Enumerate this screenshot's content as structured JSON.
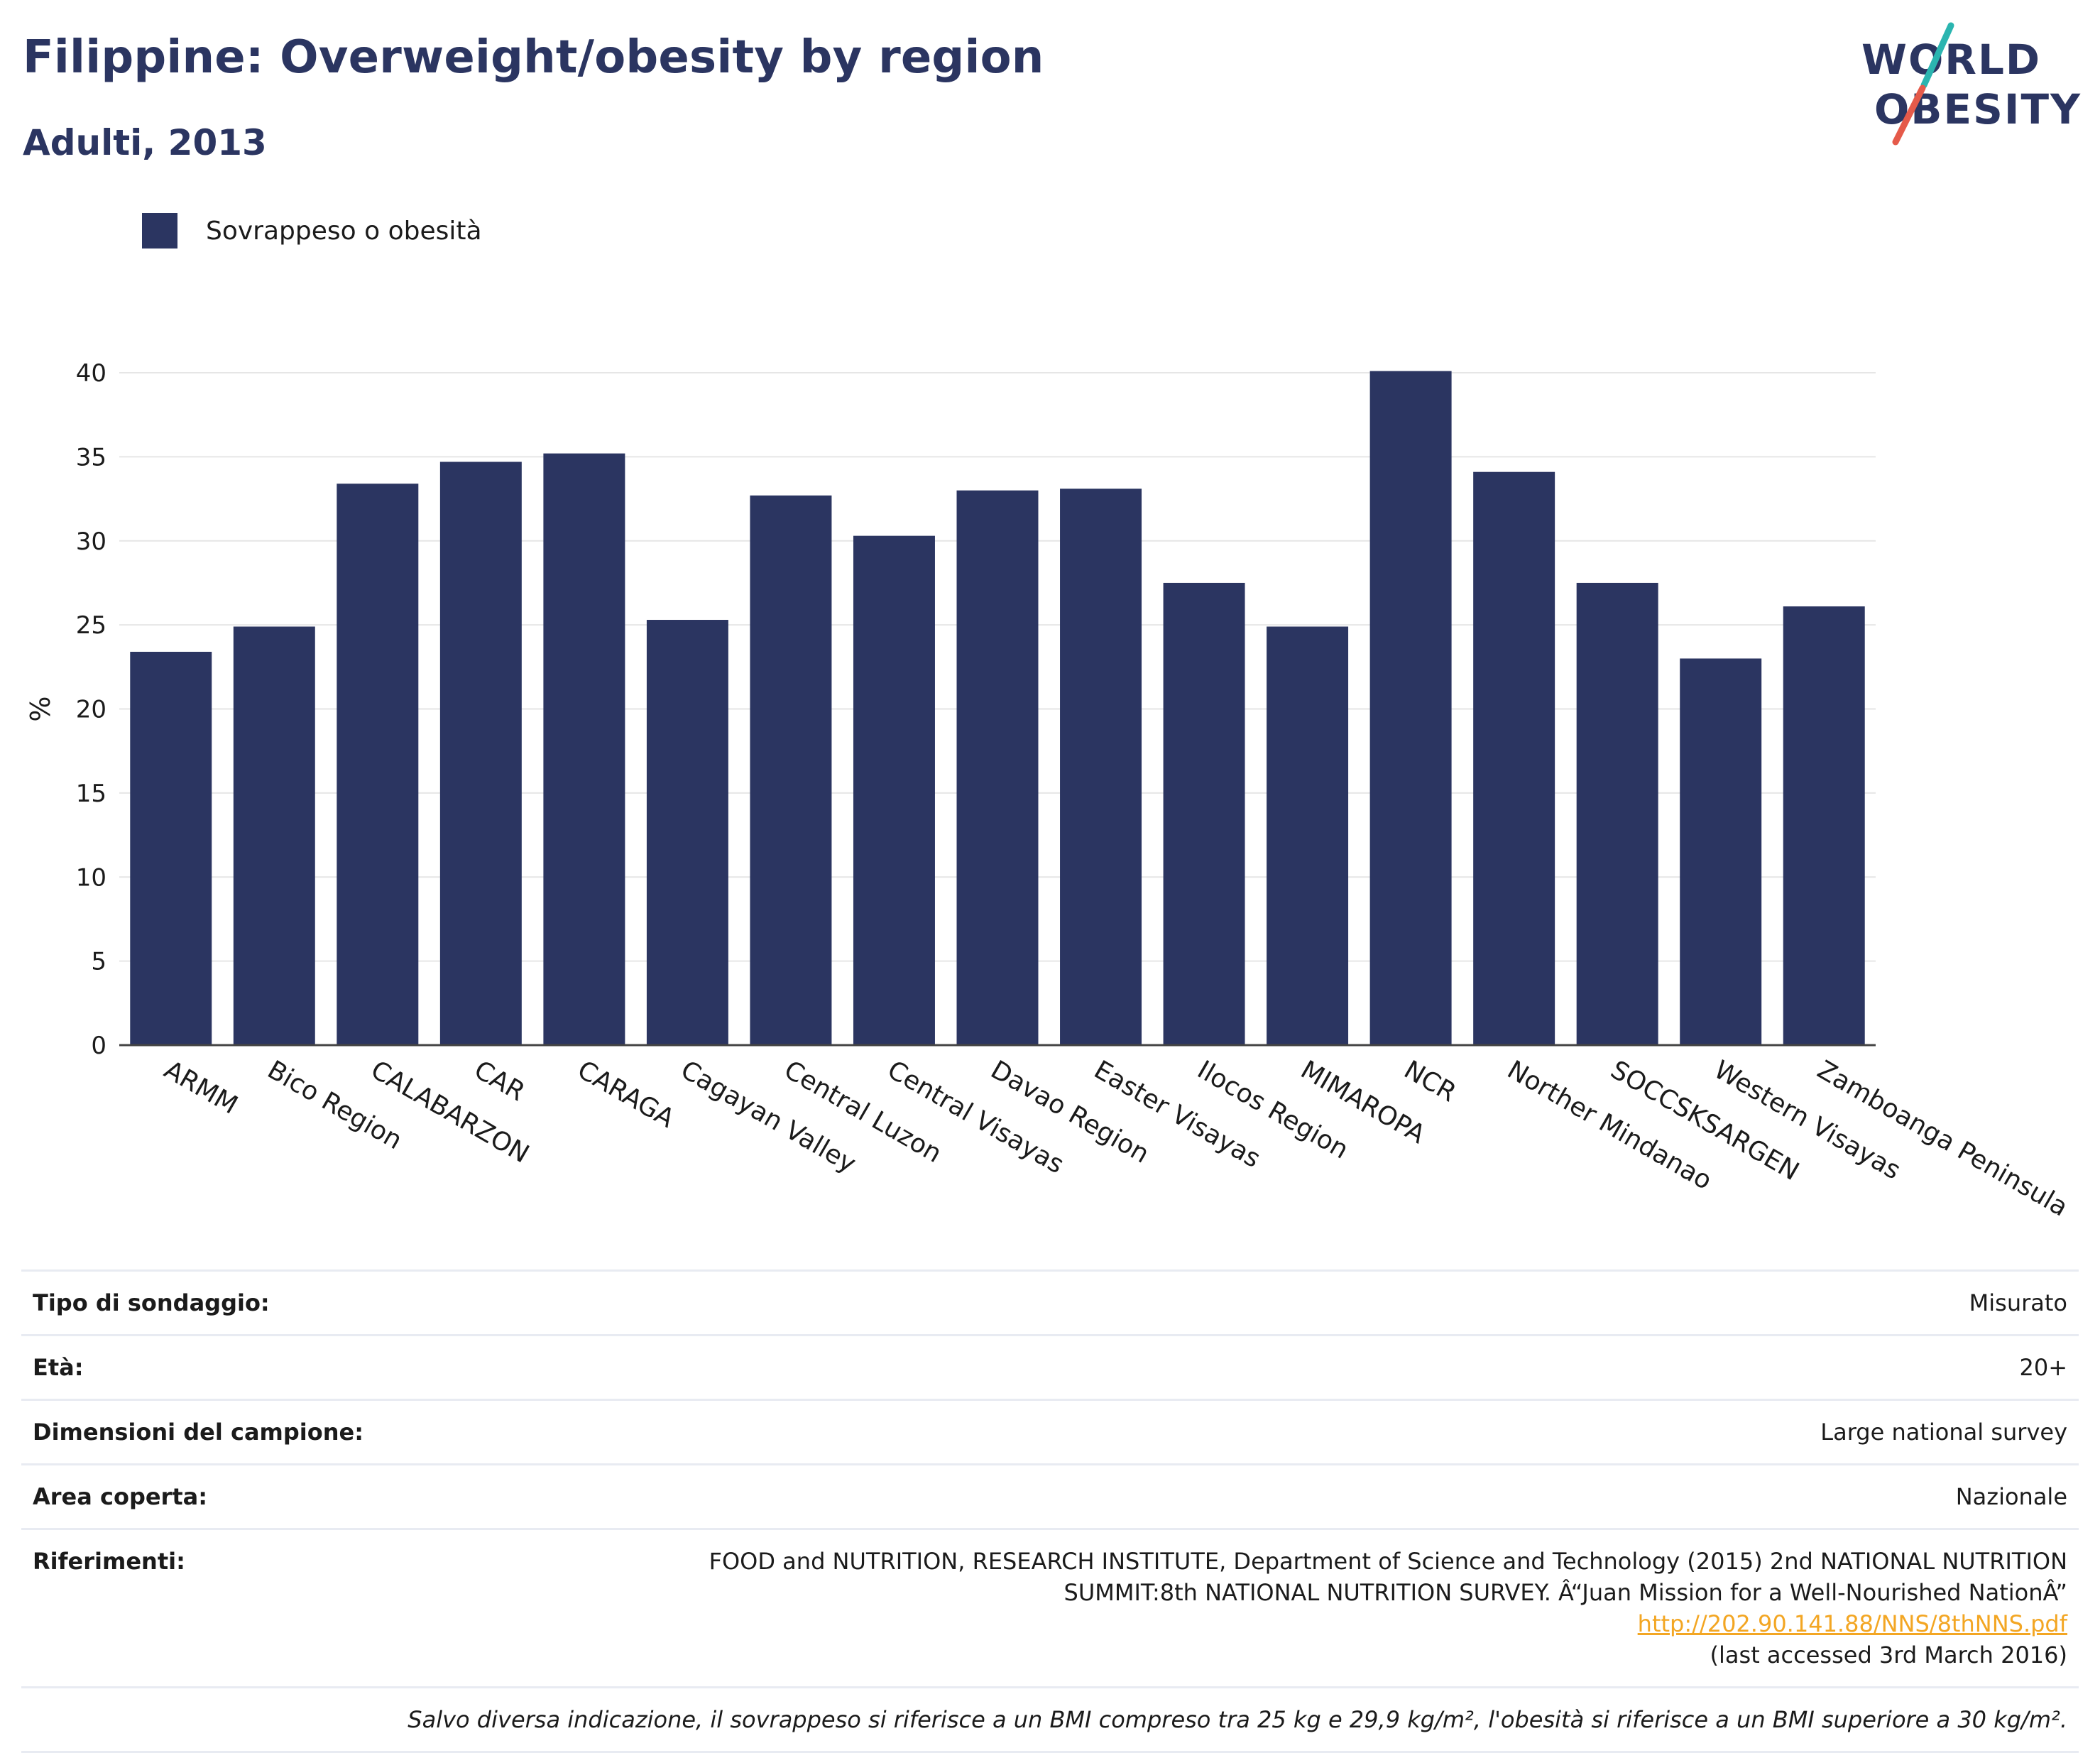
{
  "header": {
    "title": "Filippine: Overweight/obesity by region",
    "subtitle": "Adulti, 2013"
  },
  "logo": {
    "line1": "WORLD",
    "line2": "OBESITY"
  },
  "colors": {
    "bar": "#2b3561",
    "grid": "#e6e6e6",
    "axis": "#444444",
    "accent_teal": "#2bb5b0",
    "accent_red": "#e55a4a",
    "link": "#f3a623"
  },
  "chart_data": {
    "type": "bar",
    "ylabel": "%",
    "ylim": [
      0,
      40
    ],
    "yticks": [
      0,
      5,
      10,
      15,
      20,
      25,
      30,
      35,
      40
    ],
    "grid": true,
    "legend_position": "top-left",
    "categories": [
      "ARMM",
      "Bico Region",
      "CALABARZON",
      "CAR",
      "CARAGA",
      "Cagayan Valley",
      "Central Luzon",
      "Central Visayas",
      "Davao Region",
      "Easter Visayas",
      "Ilocos Region",
      "MIMAROPA",
      "NCR",
      "Norther Mindanao",
      "SOCCSKSARGEN",
      "Western Visayas",
      "Zamboanga Peninsula"
    ],
    "series": [
      {
        "name": "Sovrappeso o obesità",
        "values": [
          23.4,
          24.9,
          33.4,
          34.7,
          35.2,
          25.3,
          32.7,
          30.3,
          33.0,
          33.1,
          27.5,
          24.9,
          40.1,
          34.1,
          27.5,
          23.0,
          26.1
        ]
      }
    ]
  },
  "info": {
    "survey_type": {
      "label": "Tipo di sondaggio:",
      "value": "Misurato"
    },
    "age": {
      "label": "Età:",
      "value": "20+"
    },
    "sample_size": {
      "label": "Dimensioni del campione:",
      "value": "Large national survey"
    },
    "area": {
      "label": "Area coperta:",
      "value": "Nazionale"
    },
    "references": {
      "label": "Riferimenti:",
      "line1": "FOOD and NUTRITION, RESEARCH INSTITUTE, Department of Science and Technology (2015) 2nd NATIONAL NUTRITION",
      "line2": "SUMMIT:8th NATIONAL NUTRITION SURVEY. Â“Juan Mission for a Well-Nourished NationÂ” ",
      "link": "http://202.90.141.88/NNS/8thNNS.pdf",
      "line3": "(last accessed 3rd March 2016)"
    },
    "note": "Salvo diversa indicazione, il sovrappeso si riferisce a un BMI compreso tra 25 kg e 29,9 kg/m², l'obesità si riferisce a un BMI superiore a 30 kg/m²."
  }
}
